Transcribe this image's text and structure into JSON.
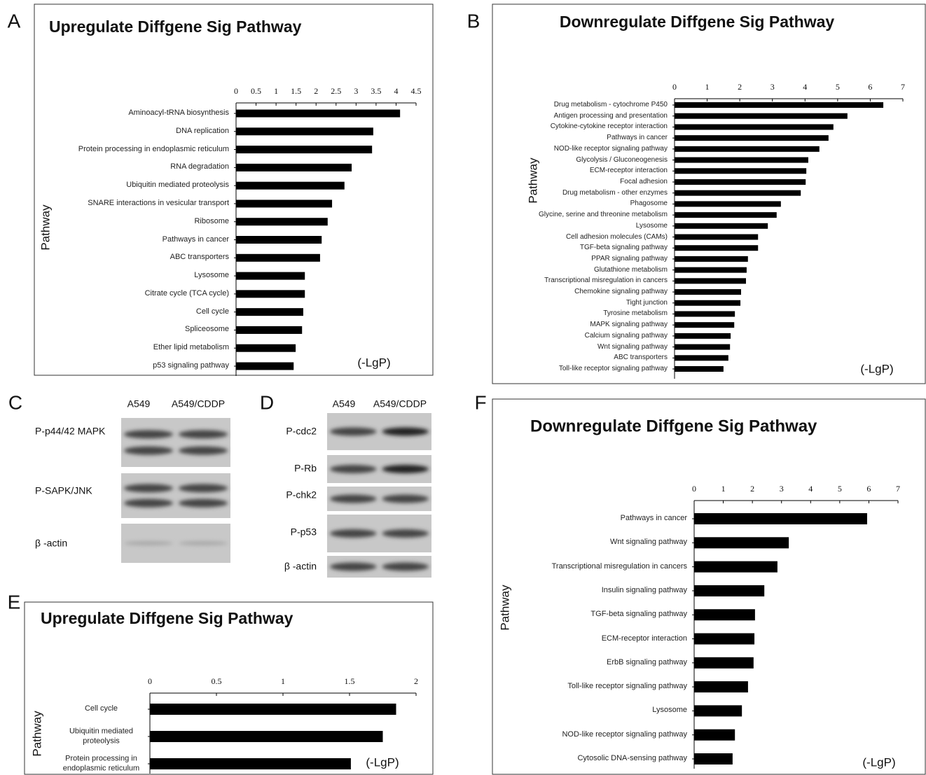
{
  "chart_data": [
    {
      "type": "bar",
      "label": "A",
      "title": "Upregulate Diffgene Sig Pathway",
      "ylabel": "Pathway",
      "xlabel": "(-LgP)",
      "orientation": "horizontal",
      "color": "#000000",
      "categories": [
        "Aminoacyl-tRNA biosynthesis",
        "DNA replication",
        "Protein processing in endoplasmic reticulum",
        "RNA degradation",
        "Ubiquitin mediated proteolysis",
        "SNARE interactions in vesicular transport",
        "Ribosome",
        "Pathways in cancer",
        "ABC transporters",
        "Lysosome",
        "Citrate cycle (TCA cycle)",
        "Cell cycle",
        "Spliceosome",
        "Ether lipid metabolism",
        "p53 signaling pathway"
      ],
      "values": [
        4.1,
        3.43,
        3.4,
        2.89,
        2.71,
        2.4,
        2.29,
        2.14,
        2.1,
        1.72,
        1.72,
        1.68,
        1.65,
        1.49,
        1.44
      ],
      "xlim": [
        0,
        4.5
      ],
      "xticks": [
        0,
        0.5,
        1,
        1.5,
        2,
        2.5,
        3,
        3.5,
        4,
        4.5
      ]
    },
    {
      "type": "bar",
      "label": "B",
      "title": "Downregulate Diffgene Sig Pathway",
      "ylabel": "Pathway",
      "xlabel": "(-LgP)",
      "orientation": "horizontal",
      "color": "#000000",
      "categories": [
        "Drug metabolism - cytochrome P450",
        "Antigen processing and presentation",
        "Cytokine-cytokine receptor interaction",
        "Pathways in cancer",
        "NOD-like receptor signaling pathway",
        "Glycolysis / Gluconeogenesis",
        "ECM-receptor interaction",
        "Focal adhesion",
        "Drug metabolism - other enzymes",
        "Phagosome",
        "Glycine, serine and threonine metabolism",
        "Lysosome",
        "Cell adhesion molecules (CAMs)",
        "TGF-beta signaling pathway",
        "PPAR signaling pathway",
        "Glutathione metabolism",
        "Transcriptional misregulation in cancers",
        "Chemokine signaling pathway",
        "Tight junction",
        "Tyrosine metabolism",
        "MAPK signaling pathway",
        "Calcium signaling pathway",
        "Wnt signaling pathway",
        "ABC transporters",
        "Toll-like receptor signaling pathway"
      ],
      "values": [
        6.4,
        5.3,
        4.87,
        4.72,
        4.44,
        4.1,
        4.04,
        4.02,
        3.87,
        3.26,
        3.13,
        2.86,
        2.56,
        2.56,
        2.25,
        2.21,
        2.19,
        2.04,
        2.02,
        1.85,
        1.83,
        1.72,
        1.7,
        1.65,
        1.5
      ],
      "xlim": [
        0,
        7
      ],
      "xticks": [
        0,
        1,
        2,
        3,
        4,
        5,
        6,
        7
      ]
    },
    {
      "type": "bar",
      "label": "E",
      "title": "Upregulate Diffgene Sig Pathway",
      "ylabel": "Pathway",
      "xlabel": "(-LgP)",
      "orientation": "horizontal",
      "color": "#000000",
      "categories": [
        "Cell cycle",
        "Ubiquitin mediated proteolysis",
        "Protein processing in endoplasmic reticulum"
      ],
      "values": [
        1.85,
        1.75,
        1.51
      ],
      "xlim": [
        0,
        2
      ],
      "xticks": [
        0,
        0.5,
        1,
        1.5,
        2
      ]
    },
    {
      "type": "bar",
      "label": "F",
      "title": "Downregulate Diffgene Sig Pathway",
      "ylabel": "Pathway",
      "xlabel": "(-LgP)",
      "orientation": "horizontal",
      "color": "#000000",
      "categories": [
        "Pathways in cancer",
        "Wnt signaling pathway",
        "Transcriptional misregulation in cancers",
        "Insulin signaling pathway",
        "TGF-beta signaling pathway",
        "ECM-receptor interaction",
        "ErbB signaling pathway",
        "Toll-like receptor signaling pathway",
        "Lysosome",
        "NOD-like receptor signaling pathway",
        "Cytosolic DNA-sensing pathway"
      ],
      "values": [
        5.94,
        3.25,
        2.86,
        2.41,
        2.09,
        2.07,
        2.04,
        1.85,
        1.64,
        1.4,
        1.32
      ],
      "xlim": [
        0,
        7
      ],
      "xticks": [
        0,
        1,
        2,
        3,
        4,
        5,
        6,
        7
      ]
    }
  ],
  "blots": [
    {
      "label": "C",
      "columns": [
        "A549",
        "A549/CDDP"
      ],
      "rows": [
        "P-p44/42 MAPK",
        "P-SAPK/JNK",
        "β -actin"
      ]
    },
    {
      "label": "D",
      "columns": [
        "A549",
        "A549/CDDP"
      ],
      "rows": [
        "P-cdc2",
        "P-Rb",
        "P-chk2",
        "P-p53",
        "β -actin"
      ]
    }
  ]
}
